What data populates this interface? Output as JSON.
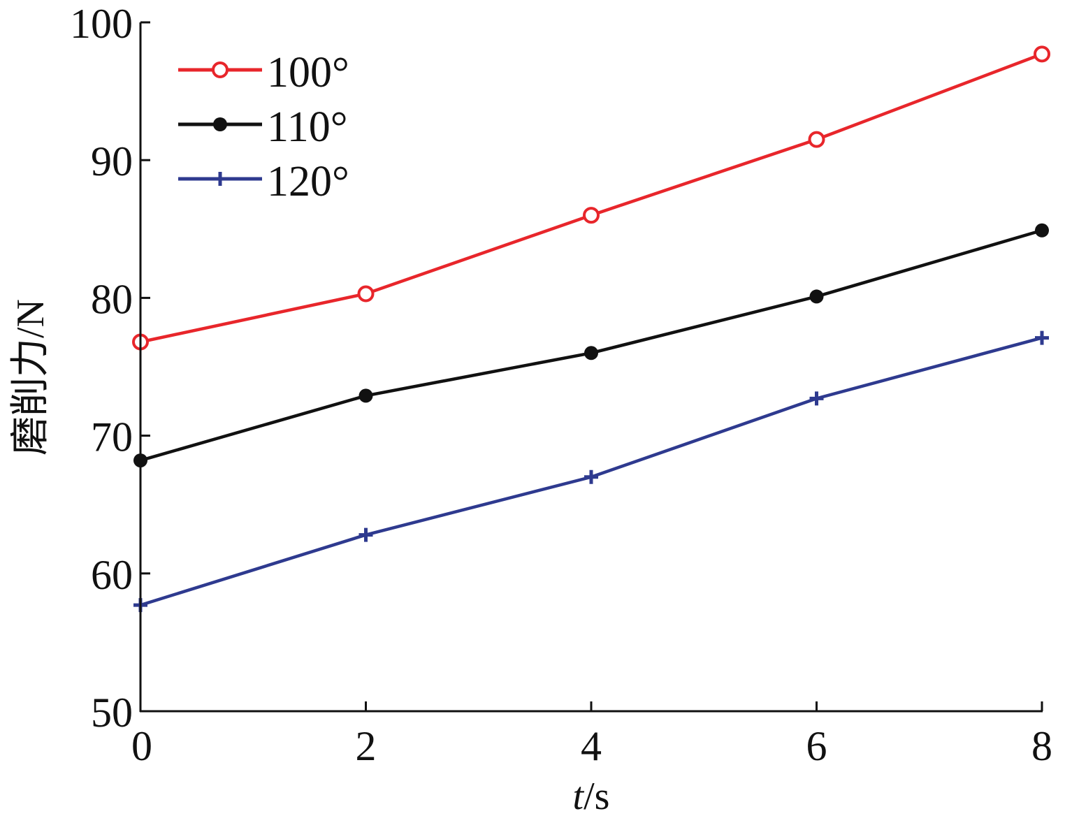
{
  "chart_data": {
    "type": "line",
    "title": "",
    "xlabel_italic": "t",
    "xlabel_rest": "/s",
    "ylabel": "磨削力/N",
    "x": [
      0,
      2,
      4,
      6,
      8
    ],
    "xlim": [
      0,
      8
    ],
    "ylim": [
      50,
      100
    ],
    "xticks": [
      0,
      2,
      4,
      6,
      8
    ],
    "yticks": [
      50,
      60,
      70,
      80,
      90,
      100
    ],
    "grid": false,
    "legend_position": "top-left",
    "series": [
      {
        "name": "100°",
        "color": "#e8262b",
        "marker": "open-circle",
        "values": [
          76.8,
          80.3,
          86.0,
          91.5,
          97.7
        ]
      },
      {
        "name": "110°",
        "color": "#111111",
        "marker": "filled-circle",
        "values": [
          68.2,
          72.9,
          76.0,
          80.1,
          84.9
        ]
      },
      {
        "name": "120°",
        "color": "#2e3a8f",
        "marker": "plus",
        "values": [
          57.7,
          62.8,
          67.0,
          72.7,
          77.1
        ]
      }
    ]
  }
}
